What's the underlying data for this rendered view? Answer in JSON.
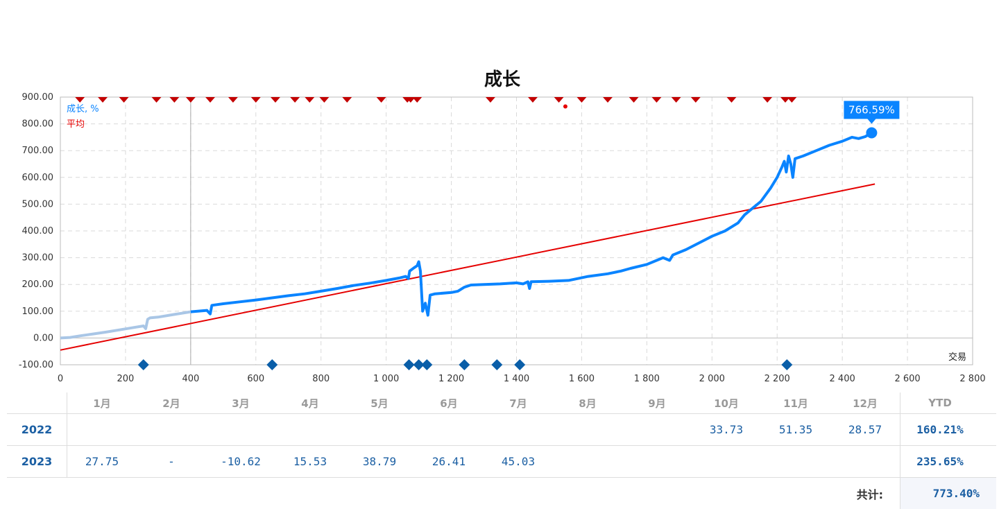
{
  "chart_data": {
    "type": "line",
    "title": "成长",
    "xlabel": "交易",
    "ylabel": "",
    "xlim": [
      0,
      2800
    ],
    "ylim": [
      -100,
      900
    ],
    "x_ticks": [
      "0",
      "200",
      "400",
      "600",
      "800",
      "1 000",
      "1 200",
      "1 400",
      "1 600",
      "1 800",
      "2 000",
      "2 200",
      "2 400",
      "2 600",
      "2 800"
    ],
    "y_ticks": [
      "900.00",
      "800.00",
      "700.00",
      "600.00",
      "500.00",
      "400.00",
      "300.00",
      "200.00",
      "100.00",
      "0.00",
      "-100.00"
    ],
    "grid": true,
    "legend_position": "top-left",
    "series": [
      {
        "name": "成长, %",
        "color": "#0a84ff",
        "faded_until_x": 400,
        "faded_color": "#a9c6e6",
        "points": [
          [
            0,
            0
          ],
          [
            30,
            2
          ],
          [
            60,
            8
          ],
          [
            100,
            15
          ],
          [
            140,
            22
          ],
          [
            180,
            30
          ],
          [
            220,
            38
          ],
          [
            255,
            45
          ],
          [
            262,
            35
          ],
          [
            268,
            70
          ],
          [
            275,
            75
          ],
          [
            300,
            78
          ],
          [
            350,
            88
          ],
          [
            400,
            98
          ],
          [
            450,
            103
          ],
          [
            460,
            90
          ],
          [
            465,
            122
          ],
          [
            500,
            128
          ],
          [
            550,
            135
          ],
          [
            600,
            142
          ],
          [
            650,
            150
          ],
          [
            700,
            158
          ],
          [
            750,
            165
          ],
          [
            800,
            175
          ],
          [
            850,
            185
          ],
          [
            900,
            196
          ],
          [
            950,
            205
          ],
          [
            1000,
            215
          ],
          [
            1040,
            224
          ],
          [
            1060,
            230
          ],
          [
            1068,
            222
          ],
          [
            1072,
            250
          ],
          [
            1085,
            262
          ],
          [
            1095,
            270
          ],
          [
            1100,
            285
          ],
          [
            1105,
            250
          ],
          [
            1112,
            100
          ],
          [
            1120,
            130
          ],
          [
            1128,
            85
          ],
          [
            1135,
            160
          ],
          [
            1150,
            165
          ],
          [
            1200,
            170
          ],
          [
            1220,
            175
          ],
          [
            1240,
            190
          ],
          [
            1260,
            198
          ],
          [
            1300,
            200
          ],
          [
            1350,
            202
          ],
          [
            1400,
            206
          ],
          [
            1420,
            202
          ],
          [
            1435,
            210
          ],
          [
            1440,
            185
          ],
          [
            1445,
            210
          ],
          [
            1500,
            212
          ],
          [
            1560,
            215
          ],
          [
            1620,
            230
          ],
          [
            1680,
            240
          ],
          [
            1720,
            250
          ],
          [
            1750,
            260
          ],
          [
            1800,
            275
          ],
          [
            1850,
            300
          ],
          [
            1870,
            290
          ],
          [
            1880,
            310
          ],
          [
            1920,
            330
          ],
          [
            1960,
            355
          ],
          [
            2000,
            380
          ],
          [
            2040,
            400
          ],
          [
            2080,
            430
          ],
          [
            2100,
            460
          ],
          [
            2120,
            480
          ],
          [
            2150,
            510
          ],
          [
            2180,
            560
          ],
          [
            2200,
            600
          ],
          [
            2215,
            640
          ],
          [
            2222,
            660
          ],
          [
            2228,
            620
          ],
          [
            2235,
            680
          ],
          [
            2242,
            650
          ],
          [
            2248,
            600
          ],
          [
            2255,
            670
          ],
          [
            2280,
            680
          ],
          [
            2320,
            700
          ],
          [
            2360,
            720
          ],
          [
            2400,
            735
          ],
          [
            2430,
            750
          ],
          [
            2450,
            745
          ],
          [
            2470,
            752
          ],
          [
            2490,
            766.59
          ]
        ]
      },
      {
        "name": "平均",
        "color": "#e50000",
        "points": [
          [
            0,
            -45
          ],
          [
            2500,
            575
          ]
        ]
      }
    ],
    "annotations": [
      {
        "type": "last-value-label",
        "x": 2490,
        "y": 766.59,
        "text": "766.59%",
        "color": "#0a84ff"
      },
      {
        "type": "dot",
        "x": 1550,
        "y": 865,
        "color": "#e50000"
      }
    ],
    "top_markers": {
      "color": "#c30000",
      "y": 900,
      "x": [
        60,
        130,
        195,
        295,
        350,
        400,
        460,
        530,
        600,
        660,
        720,
        765,
        810,
        880,
        985,
        1065,
        1075,
        1095,
        1320,
        1450,
        1530,
        1600,
        1680,
        1760,
        1830,
        1890,
        1950,
        2060,
        2170,
        2225,
        2245
      ]
    },
    "bottom_markers": {
      "color": "#0a5ea8",
      "y": -100,
      "x": [
        255,
        650,
        1070,
        1100,
        1125,
        1240,
        1340,
        1410,
        2230
      ]
    }
  },
  "table": {
    "months": [
      "1月",
      "2月",
      "3月",
      "4月",
      "5月",
      "6月",
      "7月",
      "8月",
      "9月",
      "10月",
      "11月",
      "12月"
    ],
    "ytd_header": "YTD",
    "rows": [
      {
        "year": "2022",
        "values": [
          "",
          "",
          "",
          "",
          "",
          "",
          "",
          "",
          "",
          "33.73",
          "51.35",
          "28.57"
        ],
        "ytd": "160.21%"
      },
      {
        "year": "2023",
        "values": [
          "27.75",
          "-",
          "-10.62",
          "15.53",
          "38.79",
          "26.41",
          "45.03",
          "",
          "",
          "",
          "",
          ""
        ],
        "ytd": "235.65%"
      }
    ],
    "total_label": "共计:",
    "total_value": "773.40%"
  }
}
